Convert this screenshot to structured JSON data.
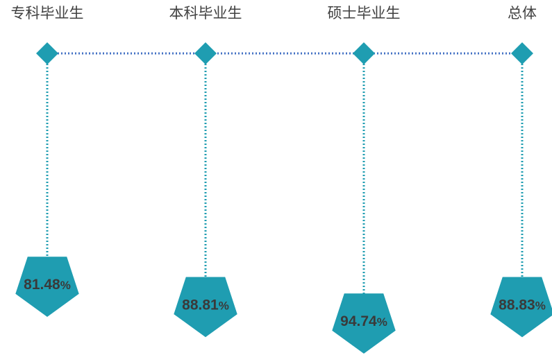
{
  "chart_data": {
    "type": "bar",
    "categories": [
      "专科毕业生",
      "本科毕业生",
      "硕士毕业生",
      "总体"
    ],
    "values": [
      81.48,
      88.81,
      94.74,
      88.83
    ],
    "value_labels": [
      "81.48",
      "88.81",
      "94.74",
      "88.83"
    ],
    "unit": "%",
    "title": "",
    "xlabel": "",
    "ylabel": "",
    "ylim": [
      75,
      100
    ],
    "grid": false,
    "legend": "none"
  },
  "colors": {
    "accent": "#1f9db1",
    "connector": "#4472c4",
    "label_text": "#404040",
    "value_text": "#3a3a3a"
  }
}
